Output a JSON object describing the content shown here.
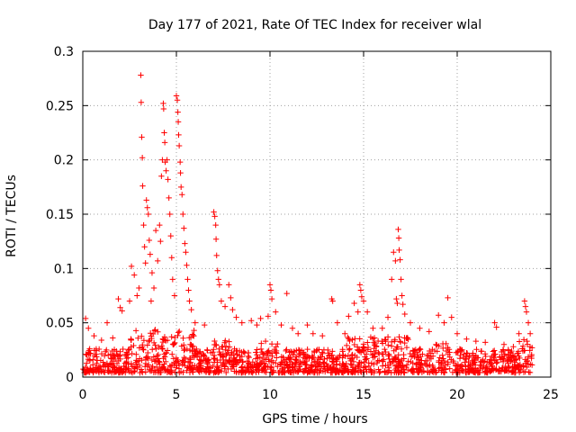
{
  "chart_data": {
    "type": "scatter",
    "title": "Day 177 of 2021, Rate Of TEC Index for receiver wlal",
    "xlabel": "GPS time / hours",
    "ylabel": "ROTI / TECUs",
    "xlim": [
      0,
      25
    ],
    "ylim": [
      0,
      0.3
    ],
    "xticks": [
      "0",
      "5",
      "10",
      "15",
      "20",
      "25"
    ],
    "yticks": [
      "0",
      "0.05",
      "0.1",
      "0.15",
      "0.2",
      "0.25",
      "0.3"
    ],
    "grid": true,
    "marker": "+",
    "color": "#ff0000",
    "series": [
      {
        "points": [
          [
            0.15,
            0.054
          ],
          [
            0.3,
            0.045
          ],
          [
            0.6,
            0.038
          ],
          [
            1.0,
            0.034
          ],
          [
            1.3,
            0.05
          ],
          [
            1.6,
            0.036
          ],
          [
            1.9,
            0.072
          ],
          [
            2.0,
            0.064
          ],
          [
            2.1,
            0.061
          ],
          [
            2.5,
            0.07
          ],
          [
            2.6,
            0.102
          ],
          [
            2.75,
            0.094
          ],
          [
            2.9,
            0.075
          ],
          [
            3.0,
            0.082
          ],
          [
            3.1,
            0.278
          ],
          [
            3.12,
            0.253
          ],
          [
            3.15,
            0.221
          ],
          [
            3.18,
            0.202
          ],
          [
            3.2,
            0.176
          ],
          [
            3.25,
            0.14
          ],
          [
            3.3,
            0.12
          ],
          [
            3.35,
            0.105
          ],
          [
            3.4,
            0.163
          ],
          [
            3.45,
            0.156
          ],
          [
            3.5,
            0.15
          ],
          [
            3.55,
            0.126
          ],
          [
            3.6,
            0.113
          ],
          [
            3.65,
            0.07
          ],
          [
            3.7,
            0.096
          ],
          [
            3.8,
            0.082
          ],
          [
            3.9,
            0.135
          ],
          [
            4.0,
            0.107
          ],
          [
            4.1,
            0.14
          ],
          [
            4.15,
            0.125
          ],
          [
            4.2,
            0.185
          ],
          [
            4.25,
            0.2
          ],
          [
            4.3,
            0.252
          ],
          [
            4.32,
            0.247
          ],
          [
            4.35,
            0.225
          ],
          [
            4.38,
            0.216
          ],
          [
            4.4,
            0.198
          ],
          [
            4.45,
            0.19
          ],
          [
            4.5,
            0.2
          ],
          [
            4.55,
            0.182
          ],
          [
            4.6,
            0.165
          ],
          [
            4.65,
            0.15
          ],
          [
            4.7,
            0.13
          ],
          [
            4.75,
            0.11
          ],
          [
            4.8,
            0.09
          ],
          [
            4.9,
            0.075
          ],
          [
            5.0,
            0.259
          ],
          [
            5.05,
            0.255
          ],
          [
            5.08,
            0.244
          ],
          [
            5.1,
            0.235
          ],
          [
            5.12,
            0.223
          ],
          [
            5.15,
            0.213
          ],
          [
            5.2,
            0.198
          ],
          [
            5.22,
            0.188
          ],
          [
            5.25,
            0.175
          ],
          [
            5.3,
            0.168
          ],
          [
            5.35,
            0.15
          ],
          [
            5.4,
            0.137
          ],
          [
            5.45,
            0.123
          ],
          [
            5.5,
            0.115
          ],
          [
            5.55,
            0.103
          ],
          [
            5.6,
            0.09
          ],
          [
            5.65,
            0.08
          ],
          [
            5.7,
            0.07
          ],
          [
            5.8,
            0.062
          ],
          [
            6.0,
            0.05
          ],
          [
            6.5,
            0.048
          ],
          [
            7.0,
            0.152
          ],
          [
            7.05,
            0.148
          ],
          [
            7.1,
            0.14
          ],
          [
            7.12,
            0.127
          ],
          [
            7.15,
            0.112
          ],
          [
            7.2,
            0.098
          ],
          [
            7.25,
            0.09
          ],
          [
            7.3,
            0.085
          ],
          [
            7.4,
            0.07
          ],
          [
            7.6,
            0.065
          ],
          [
            7.8,
            0.085
          ],
          [
            7.9,
            0.073
          ],
          [
            8.0,
            0.062
          ],
          [
            8.2,
            0.055
          ],
          [
            8.5,
            0.05
          ],
          [
            9.0,
            0.052
          ],
          [
            9.3,
            0.048
          ],
          [
            9.5,
            0.054
          ],
          [
            9.9,
            0.056
          ],
          [
            10.0,
            0.085
          ],
          [
            10.05,
            0.08
          ],
          [
            10.1,
            0.072
          ],
          [
            10.3,
            0.06
          ],
          [
            10.6,
            0.048
          ],
          [
            10.9,
            0.077
          ],
          [
            11.2,
            0.045
          ],
          [
            11.5,
            0.04
          ],
          [
            12.0,
            0.048
          ],
          [
            12.3,
            0.04
          ],
          [
            12.8,
            0.038
          ],
          [
            13.3,
            0.072
          ],
          [
            13.35,
            0.07
          ],
          [
            13.6,
            0.05
          ],
          [
            14.0,
            0.04
          ],
          [
            14.2,
            0.056
          ],
          [
            14.5,
            0.068
          ],
          [
            14.7,
            0.06
          ],
          [
            14.8,
            0.085
          ],
          [
            14.85,
            0.08
          ],
          [
            14.9,
            0.074
          ],
          [
            15.0,
            0.07
          ],
          [
            15.2,
            0.06
          ],
          [
            15.5,
            0.045
          ],
          [
            16.0,
            0.045
          ],
          [
            16.3,
            0.055
          ],
          [
            16.5,
            0.09
          ],
          [
            16.6,
            0.115
          ],
          [
            16.7,
            0.107
          ],
          [
            16.75,
            0.072
          ],
          [
            16.8,
            0.068
          ],
          [
            16.85,
            0.136
          ],
          [
            16.88,
            0.128
          ],
          [
            16.9,
            0.117
          ],
          [
            16.95,
            0.108
          ],
          [
            17.0,
            0.09
          ],
          [
            17.05,
            0.075
          ],
          [
            17.1,
            0.067
          ],
          [
            17.2,
            0.058
          ],
          [
            17.5,
            0.05
          ],
          [
            18.0,
            0.045
          ],
          [
            18.5,
            0.042
          ],
          [
            19.0,
            0.057
          ],
          [
            19.3,
            0.05
          ],
          [
            19.5,
            0.073
          ],
          [
            19.7,
            0.055
          ],
          [
            20.0,
            0.04
          ],
          [
            20.5,
            0.035
          ],
          [
            21.0,
            0.033
          ],
          [
            21.5,
            0.032
          ],
          [
            22.0,
            0.05
          ],
          [
            22.1,
            0.046
          ],
          [
            22.5,
            0.03
          ],
          [
            23.0,
            0.028
          ],
          [
            23.3,
            0.04
          ],
          [
            23.6,
            0.07
          ],
          [
            23.65,
            0.065
          ],
          [
            23.7,
            0.06
          ],
          [
            23.8,
            0.05
          ],
          [
            23.9,
            0.04
          ]
        ]
      }
    ]
  }
}
